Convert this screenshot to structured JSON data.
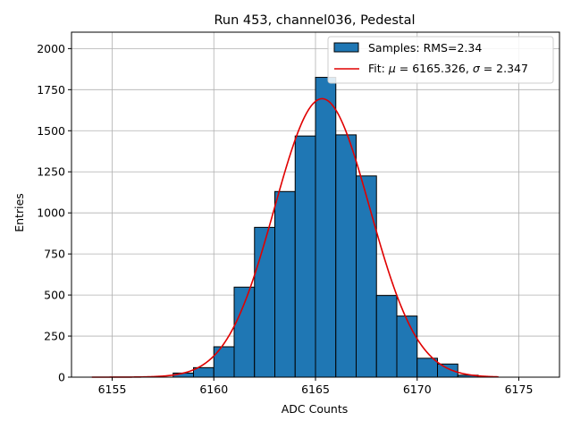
{
  "chart_data": {
    "type": "bar",
    "title": "Run 453, channel036, Pedestal",
    "xlabel": "ADC Counts",
    "ylabel": "Entries",
    "xlim": [
      6153.0,
      6177.0
    ],
    "ylim": [
      0,
      2100
    ],
    "xticks": [
      6155,
      6160,
      6165,
      6170,
      6175
    ],
    "yticks": [
      0,
      250,
      500,
      750,
      1000,
      1250,
      1500,
      1750,
      2000
    ],
    "grid": true,
    "legend_position": "top-right",
    "bin_width": 1,
    "histogram": {
      "name": "Samples: RMS=2.34",
      "color": "#1f77b4",
      "bins": [
        {
          "x": 6158,
          "count": 25
        },
        {
          "x": 6159,
          "count": 58
        },
        {
          "x": 6160,
          "count": 185
        },
        {
          "x": 6161,
          "count": 548
        },
        {
          "x": 6162,
          "count": 912
        },
        {
          "x": 6163,
          "count": 1130
        },
        {
          "x": 6164,
          "count": 1468
        },
        {
          "x": 6165,
          "count": 1825
        },
        {
          "x": 6166,
          "count": 1475
        },
        {
          "x": 6167,
          "count": 1225
        },
        {
          "x": 6168,
          "count": 497
        },
        {
          "x": 6169,
          "count": 372
        },
        {
          "x": 6170,
          "count": 115
        },
        {
          "x": 6171,
          "count": 80
        },
        {
          "x": 6172,
          "count": 12
        }
      ]
    },
    "fit": {
      "label_prefix": "Fit: ",
      "mu_symbol": "μ",
      "mu_text": " = 6165.326, ",
      "sigma_symbol": "σ",
      "sigma_text": " = 2.347",
      "color": "#e00000",
      "mu": 6165.326,
      "sigma": 2.347,
      "amplitude": 1695,
      "x_range": [
        6154,
        6174
      ]
    }
  }
}
